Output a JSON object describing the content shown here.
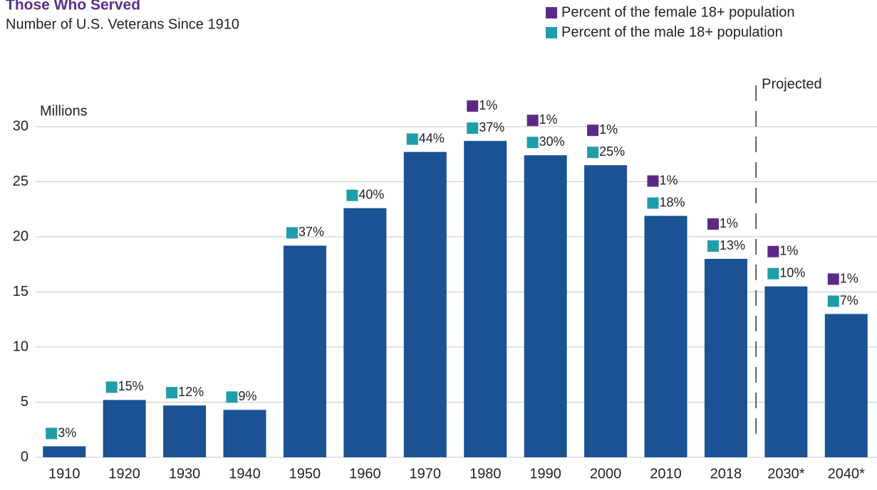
{
  "chart_data": {
    "type": "bar",
    "title": "Those Who Served",
    "subtitle": "Number of U.S. Veterans Since 1910",
    "y_label": "Millions",
    "annotation": "Projected",
    "categories": [
      "1910",
      "1920",
      "1930",
      "1940",
      "1950",
      "1960",
      "1970",
      "1980",
      "1990",
      "2000",
      "2010",
      "2018",
      "2030*",
      "2040*"
    ],
    "values": [
      1.0,
      5.2,
      4.7,
      4.3,
      19.2,
      22.6,
      27.7,
      28.7,
      27.4,
      26.5,
      21.9,
      18.0,
      15.5,
      13.0
    ],
    "color": "#1a5294",
    "series": [
      {
        "name": "Percent of the female 18+ population",
        "color": "#5b2a86",
        "values": [
          null,
          null,
          null,
          null,
          null,
          null,
          null,
          1,
          1,
          1,
          1,
          1,
          1,
          1
        ],
        "value_labels": [
          null,
          null,
          null,
          null,
          null,
          null,
          null,
          "1%",
          "1%",
          "1%",
          "1%",
          "1%",
          "1%",
          "1%"
        ]
      },
      {
        "name": "Percent of the male 18+ population",
        "color": "#1f9ea8",
        "values": [
          3,
          15,
          12,
          9,
          37,
          40,
          44,
          37,
          30,
          25,
          18,
          13,
          10,
          7
        ],
        "value_labels": [
          "3%",
          "15%",
          "12%",
          "9%",
          "37%",
          "40%",
          "44%",
          "37%",
          "30%",
          "25%",
          "18%",
          "13%",
          "10%",
          "7%"
        ]
      }
    ],
    "ylim": [
      0,
      30
    ],
    "yticks": [
      0,
      5,
      10,
      15,
      20,
      25,
      30
    ],
    "grid": true,
    "legend": "top-right"
  }
}
